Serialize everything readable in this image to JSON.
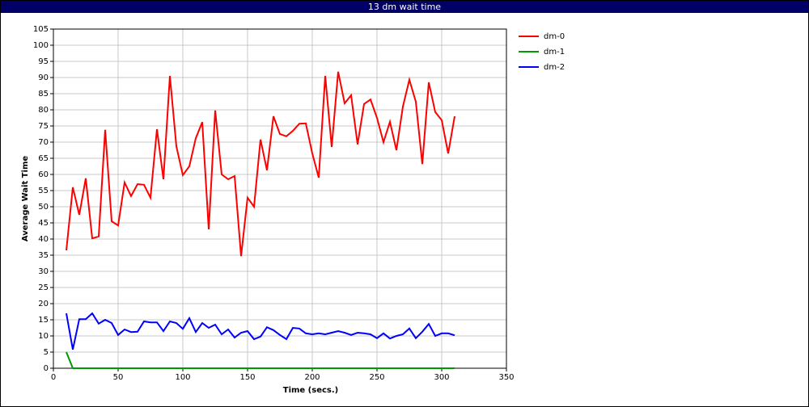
{
  "chart_data": {
    "type": "line",
    "title": "13 dm wait time",
    "x_label": "Time (secs.)",
    "y_label": "Average Wait Time",
    "x": [
      10,
      15,
      20,
      25,
      30,
      35,
      40,
      45,
      50,
      55,
      60,
      65,
      70,
      75,
      80,
      85,
      90,
      95,
      100,
      105,
      110,
      115,
      120,
      125,
      130,
      135,
      140,
      145,
      150,
      155,
      160,
      165,
      170,
      175,
      180,
      185,
      190,
      195,
      200,
      205,
      210,
      215,
      220,
      225,
      230,
      235,
      240,
      245,
      250,
      255,
      260,
      265,
      270,
      275,
      280,
      285,
      290,
      295,
      300,
      305,
      310
    ],
    "series": [
      {
        "name": "dm-0",
        "color": "#ff0000",
        "values": [
          36.5,
          56,
          47.5,
          58.8,
          40.2,
          40.8,
          73.8,
          45.5,
          44.2,
          57.5,
          53.3,
          57,
          56.8,
          52.8,
          74,
          58.5,
          90.5,
          68.7,
          59.8,
          62.5,
          71.2,
          76.2,
          43,
          79.8,
          60,
          58.5,
          59.5,
          34.7,
          52.8,
          50,
          70.8,
          61.3,
          78,
          72.5,
          71.8,
          73.5,
          75.7,
          75.8,
          66.5,
          59,
          90.5,
          68.5,
          91.8,
          82,
          84.5,
          69.3,
          81.8,
          83.2,
          77.5,
          70,
          76.3,
          67.5,
          81,
          89.3,
          82.5,
          63.2,
          88.5,
          79.3,
          76.8,
          66.5,
          78
        ]
      },
      {
        "name": "dm-1",
        "color": "#009900",
        "values": [
          5,
          0,
          0,
          0,
          0,
          0,
          0,
          0,
          0,
          0,
          0,
          0,
          0,
          0,
          0,
          0,
          0,
          0,
          0,
          0,
          0,
          0,
          0,
          0,
          0,
          0,
          0,
          0,
          0,
          0,
          0,
          0,
          0,
          0,
          0,
          0,
          0,
          0,
          0,
          0,
          0,
          0,
          0,
          0,
          0,
          0,
          0,
          0,
          0,
          0,
          0,
          0,
          0,
          0,
          0,
          0,
          0,
          0,
          0,
          0,
          0
        ]
      },
      {
        "name": "dm-2",
        "color": "#0000ff",
        "values": [
          17,
          5.8,
          15.2,
          15.2,
          17,
          13.8,
          15,
          14,
          10.3,
          12,
          11.2,
          11.3,
          14.5,
          14.2,
          14.2,
          11.5,
          14.5,
          14,
          12.2,
          15.5,
          11.2,
          14,
          12.5,
          13.5,
          10.5,
          12,
          9.5,
          11,
          11.5,
          9,
          9.8,
          12.7,
          11.8,
          10.3,
          9,
          12.5,
          12.3,
          10.8,
          10.5,
          10.8,
          10.5,
          11,
          11.5,
          11,
          10.3,
          11,
          10.8,
          10.5,
          9.3,
          10.8,
          9.2,
          10,
          10.5,
          12.3,
          9.3,
          11.3,
          13.7,
          10,
          10.8,
          10.8,
          10.2
        ]
      }
    ],
    "xlim": [
      0,
      350
    ],
    "xticks": [
      0,
      50,
      100,
      150,
      200,
      250,
      300,
      350
    ],
    "ylim": [
      0,
      105
    ],
    "yticks": [
      0,
      5,
      10,
      15,
      20,
      25,
      30,
      35,
      40,
      45,
      50,
      55,
      60,
      65,
      70,
      75,
      80,
      85,
      90,
      95,
      100,
      105
    ],
    "grid": true
  }
}
